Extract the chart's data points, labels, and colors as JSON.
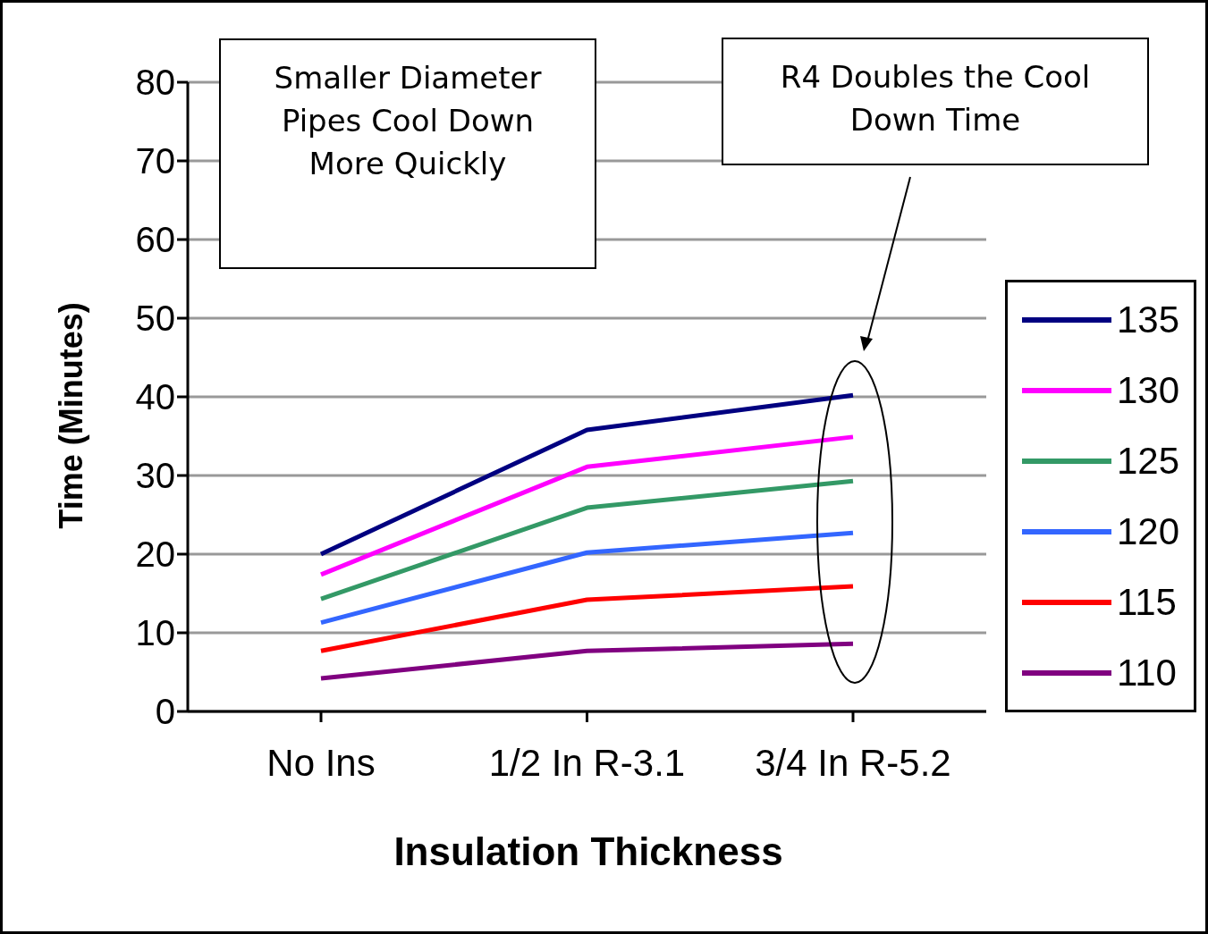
{
  "chart_data": {
    "type": "line",
    "xlabel": "Insulation Thickness",
    "ylabel": "Time (Minutes)",
    "categories": [
      "No Ins",
      "1/2 In R-3.1",
      "3/4 In R-5.2"
    ],
    "series": [
      {
        "name": "135",
        "color": "#000080",
        "values": [
          20,
          35.8,
          40.2
        ]
      },
      {
        "name": "130",
        "color": "#ff00ff",
        "values": [
          17.4,
          31.1,
          34.9
        ]
      },
      {
        "name": "125",
        "color": "#339966",
        "values": [
          14.3,
          25.9,
          29.3
        ]
      },
      {
        "name": "120",
        "color": "#3366ff",
        "values": [
          11.3,
          20.2,
          22.7
        ]
      },
      {
        "name": "115",
        "color": "#ff0000",
        "values": [
          7.7,
          14.2,
          15.9
        ]
      },
      {
        "name": "110",
        "color": "#800080",
        "values": [
          4.2,
          7.7,
          8.6
        ]
      }
    ],
    "ylim": [
      0,
      80
    ],
    "yticks": [
      0,
      10,
      20,
      30,
      40,
      50,
      60,
      70,
      80
    ],
    "grid": "y",
    "legend": "right",
    "marker": "none",
    "line_style": "solid",
    "annotations": [
      "Smaller Diameter Pipes Cool Down More Quickly",
      "R4 Doubles the Cool Down Time"
    ]
  }
}
